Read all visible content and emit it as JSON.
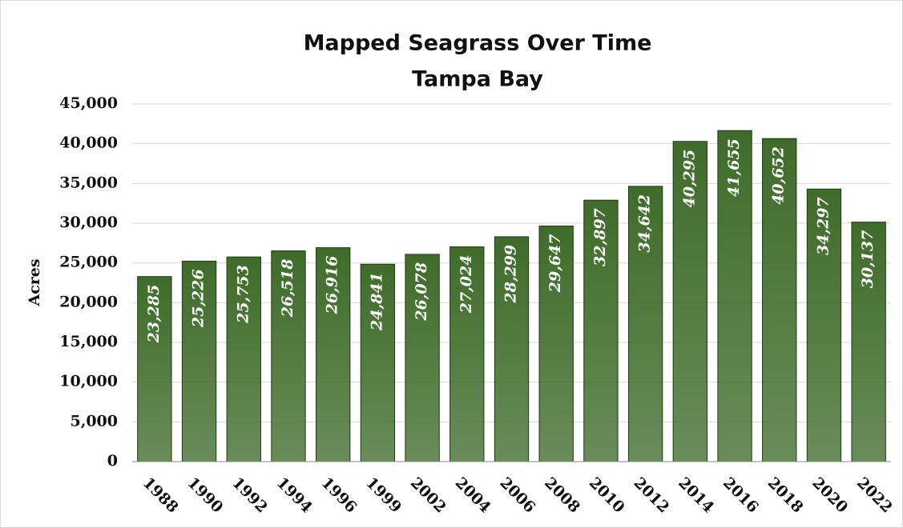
{
  "chart_data": {
    "type": "bar",
    "title": "Mapped Seagrass Over Time",
    "subtitle": "Tampa Bay",
    "y_label": "Acres",
    "categories": [
      "1988",
      "1990",
      "1992",
      "1994",
      "1996",
      "1999",
      "2002",
      "2004",
      "2006",
      "2008",
      "2010",
      "2012",
      "2014",
      "2016",
      "2018",
      "2020",
      "2022"
    ],
    "values": [
      23285,
      25226,
      25753,
      26518,
      26916,
      24841,
      26078,
      27024,
      28299,
      29647,
      32897,
      34642,
      40295,
      41655,
      40652,
      34297,
      30137
    ],
    "value_labels": [
      "23,285",
      "25,226",
      "25,753",
      "26,518",
      "26,916",
      "24,841",
      "26,078",
      "27,024",
      "28,299",
      "29,647",
      "32,897",
      "34,642",
      "40,295",
      "41,655",
      "40,652",
      "34,297",
      "30,137"
    ],
    "color": "#3f6c2a",
    "ylim": [
      0,
      45000
    ],
    "yticks": [
      0,
      {
        "value": 5000,
        "label": "5,000"
      },
      {
        "value": 10000,
        "label": "10,000"
      },
      {
        "value": 15000,
        "label": "15,000"
      },
      {
        "value": 20000,
        "label": "20,000"
      },
      {
        "value": 25000,
        "label": "25,000"
      },
      {
        "value": 30000,
        "label": "30,000"
      },
      {
        "value": 35000,
        "label": "35,000"
      },
      {
        "value": 40000,
        "label": "40,000"
      },
      {
        "value": 45000,
        "label": "45,000"
      }
    ],
    "grid": true
  }
}
